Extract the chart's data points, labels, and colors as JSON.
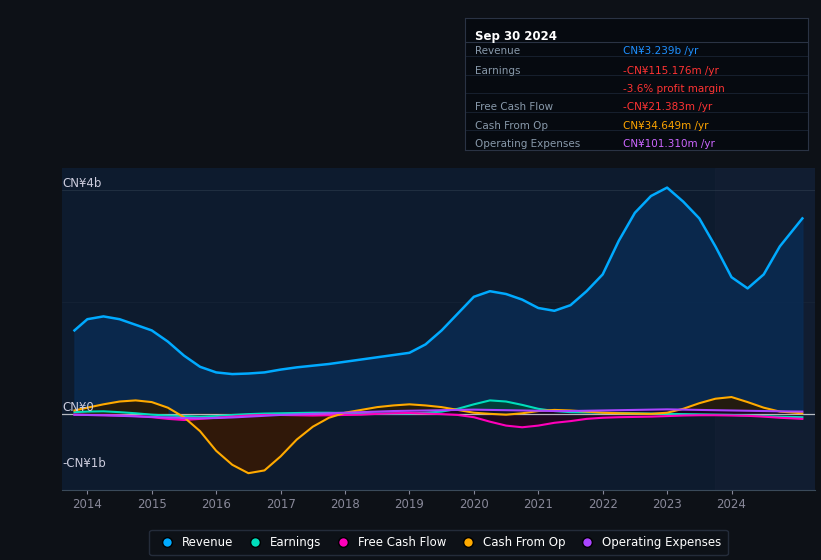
{
  "bg_color": "#0d1117",
  "plot_bg_left": "#0d1b2e",
  "plot_bg_right": "#111a2e",
  "title": "Sep 30 2024",
  "y_label_top": "CN¥4b",
  "y_label_zero": "CN¥0",
  "y_label_bottom": "-CN¥1b",
  "x_ticks": [
    2014,
    2015,
    2016,
    2017,
    2018,
    2019,
    2020,
    2021,
    2022,
    2023,
    2024
  ],
  "ylim": [
    -1350,
    4400
  ],
  "xlim": [
    2013.6,
    2025.3
  ],
  "info_box": {
    "title": "Sep 30 2024",
    "rows": [
      {
        "label": "Revenue",
        "value": "CN¥3.239b /yr",
        "value_color": "#1e90ff"
      },
      {
        "label": "Earnings",
        "value": "-CN¥115.176m /yr",
        "value_color": "#ff3333"
      },
      {
        "label": "",
        "value": "-3.6% profit margin",
        "value_color": "#ff3333"
      },
      {
        "label": "Free Cash Flow",
        "value": "-CN¥21.383m /yr",
        "value_color": "#ff3333"
      },
      {
        "label": "Cash From Op",
        "value": "CN¥34.649m /yr",
        "value_color": "#ffa500"
      },
      {
        "label": "Operating Expenses",
        "value": "CN¥101.310m /yr",
        "value_color": "#cc66ff"
      }
    ]
  },
  "series": {
    "revenue": {
      "color": "#00aaff",
      "fill_color": "#0a2a50",
      "data_x": [
        2013.8,
        2014.0,
        2014.25,
        2014.5,
        2014.75,
        2015.0,
        2015.25,
        2015.5,
        2015.75,
        2016.0,
        2016.25,
        2016.5,
        2016.75,
        2017.0,
        2017.25,
        2017.5,
        2017.75,
        2018.0,
        2018.25,
        2018.5,
        2018.75,
        2019.0,
        2019.25,
        2019.5,
        2019.75,
        2020.0,
        2020.25,
        2020.5,
        2020.75,
        2021.0,
        2021.25,
        2021.5,
        2021.75,
        2022.0,
        2022.25,
        2022.5,
        2022.75,
        2023.0,
        2023.25,
        2023.5,
        2023.75,
        2024.0,
        2024.25,
        2024.5,
        2024.75,
        2025.1
      ],
      "data_y": [
        1500,
        1700,
        1750,
        1700,
        1600,
        1500,
        1300,
        1050,
        850,
        750,
        720,
        730,
        750,
        800,
        840,
        870,
        900,
        940,
        980,
        1020,
        1060,
        1100,
        1250,
        1500,
        1800,
        2100,
        2200,
        2150,
        2050,
        1900,
        1850,
        1950,
        2200,
        2500,
        3100,
        3600,
        3900,
        4050,
        3800,
        3500,
        3000,
        2450,
        2250,
        2500,
        3000,
        3500
      ]
    },
    "earnings": {
      "color": "#00ddbb",
      "fill_color_pos": "#004433",
      "fill_color_neg": "#001a1a",
      "data_x": [
        2013.8,
        2014.0,
        2014.25,
        2014.5,
        2014.75,
        2015.0,
        2015.25,
        2015.5,
        2015.75,
        2016.0,
        2016.25,
        2016.5,
        2016.75,
        2017.0,
        2017.25,
        2017.5,
        2017.75,
        2018.0,
        2018.25,
        2018.5,
        2018.75,
        2019.0,
        2019.25,
        2019.5,
        2019.75,
        2020.0,
        2020.25,
        2020.5,
        2020.75,
        2021.0,
        2021.25,
        2021.5,
        2021.75,
        2022.0,
        2022.25,
        2022.5,
        2022.75,
        2023.0,
        2023.25,
        2023.5,
        2023.75,
        2024.0,
        2024.25,
        2024.5,
        2024.75,
        2025.1
      ],
      "data_y": [
        40,
        50,
        55,
        40,
        20,
        -5,
        -20,
        -30,
        -40,
        -30,
        -10,
        5,
        15,
        20,
        25,
        30,
        30,
        25,
        20,
        15,
        15,
        15,
        30,
        50,
        100,
        180,
        250,
        230,
        170,
        100,
        60,
        40,
        35,
        30,
        25,
        20,
        15,
        10,
        5,
        0,
        -5,
        -10,
        -20,
        -30,
        -40,
        -50
      ]
    },
    "free_cash_flow": {
      "color": "#ff00bb",
      "fill_color_neg": "#2a0018",
      "data_x": [
        2013.8,
        2014.0,
        2014.25,
        2014.5,
        2014.75,
        2015.0,
        2015.25,
        2015.5,
        2015.75,
        2016.0,
        2016.25,
        2016.5,
        2016.75,
        2017.0,
        2017.25,
        2017.5,
        2017.75,
        2018.0,
        2018.25,
        2018.5,
        2018.75,
        2019.0,
        2019.25,
        2019.5,
        2019.75,
        2020.0,
        2020.25,
        2020.5,
        2020.75,
        2021.0,
        2021.25,
        2021.5,
        2021.75,
        2022.0,
        2022.25,
        2022.5,
        2022.75,
        2023.0,
        2023.25,
        2023.5,
        2023.75,
        2024.0,
        2024.25,
        2024.5,
        2024.75,
        2025.1
      ],
      "data_y": [
        -5,
        -10,
        -15,
        -20,
        -30,
        -50,
        -80,
        -100,
        -80,
        -60,
        -40,
        -20,
        -10,
        -10,
        -15,
        -20,
        -15,
        -10,
        -5,
        10,
        20,
        25,
        15,
        5,
        -10,
        -50,
        -130,
        -200,
        -230,
        -200,
        -150,
        -120,
        -80,
        -60,
        -50,
        -45,
        -40,
        -30,
        -20,
        -15,
        -15,
        -20,
        -25,
        -40,
        -60,
        -80
      ]
    },
    "cash_from_op": {
      "color": "#ffaa00",
      "fill_color_pos": "#2a1800",
      "fill_color_neg": "#3a1800",
      "data_x": [
        2013.8,
        2014.0,
        2014.25,
        2014.5,
        2014.75,
        2015.0,
        2015.25,
        2015.5,
        2015.75,
        2016.0,
        2016.25,
        2016.5,
        2016.75,
        2017.0,
        2017.25,
        2017.5,
        2017.75,
        2018.0,
        2018.25,
        2018.5,
        2018.75,
        2019.0,
        2019.25,
        2019.5,
        2019.75,
        2020.0,
        2020.25,
        2020.5,
        2020.75,
        2021.0,
        2021.25,
        2021.5,
        2021.75,
        2022.0,
        2022.25,
        2022.5,
        2022.75,
        2023.0,
        2023.25,
        2023.5,
        2023.75,
        2024.0,
        2024.25,
        2024.5,
        2024.75,
        2025.1
      ],
      "data_y": [
        70,
        120,
        180,
        230,
        250,
        220,
        120,
        -50,
        -300,
        -650,
        -900,
        -1050,
        -1000,
        -750,
        -450,
        -220,
        -60,
        30,
        80,
        130,
        160,
        180,
        160,
        130,
        80,
        30,
        10,
        -5,
        20,
        60,
        80,
        70,
        50,
        30,
        20,
        15,
        10,
        30,
        100,
        200,
        280,
        310,
        220,
        120,
        50,
        20
      ]
    },
    "operating_expenses": {
      "color": "#aa44ff",
      "fill_color_pos": "#150028",
      "fill_color_neg": "#0d0020",
      "data_x": [
        2013.8,
        2014.0,
        2014.25,
        2014.5,
        2014.75,
        2015.0,
        2015.25,
        2015.5,
        2015.75,
        2016.0,
        2016.25,
        2016.5,
        2016.75,
        2017.0,
        2017.25,
        2017.5,
        2017.75,
        2018.0,
        2018.25,
        2018.5,
        2018.75,
        2019.0,
        2019.25,
        2019.5,
        2019.75,
        2020.0,
        2020.25,
        2020.5,
        2020.75,
        2021.0,
        2021.25,
        2021.5,
        2021.75,
        2022.0,
        2022.25,
        2022.5,
        2022.75,
        2023.0,
        2023.25,
        2023.5,
        2023.75,
        2024.0,
        2024.25,
        2024.5,
        2024.75,
        2025.1
      ],
      "data_y": [
        -5,
        -10,
        -15,
        -25,
        -35,
        -45,
        -55,
        -65,
        -70,
        -65,
        -55,
        -40,
        -25,
        -10,
        0,
        10,
        20,
        30,
        40,
        50,
        60,
        65,
        70,
        75,
        80,
        85,
        80,
        75,
        70,
        65,
        60,
        60,
        65,
        70,
        75,
        80,
        85,
        90,
        85,
        80,
        75,
        70,
        65,
        60,
        55,
        50
      ]
    }
  },
  "legend": [
    {
      "label": "Revenue",
      "color": "#00aaff"
    },
    {
      "label": "Earnings",
      "color": "#00ddbb"
    },
    {
      "label": "Free Cash Flow",
      "color": "#ff00bb"
    },
    {
      "label": "Cash From Op",
      "color": "#ffaa00"
    },
    {
      "label": "Operating Expenses",
      "color": "#aa44ff"
    }
  ]
}
